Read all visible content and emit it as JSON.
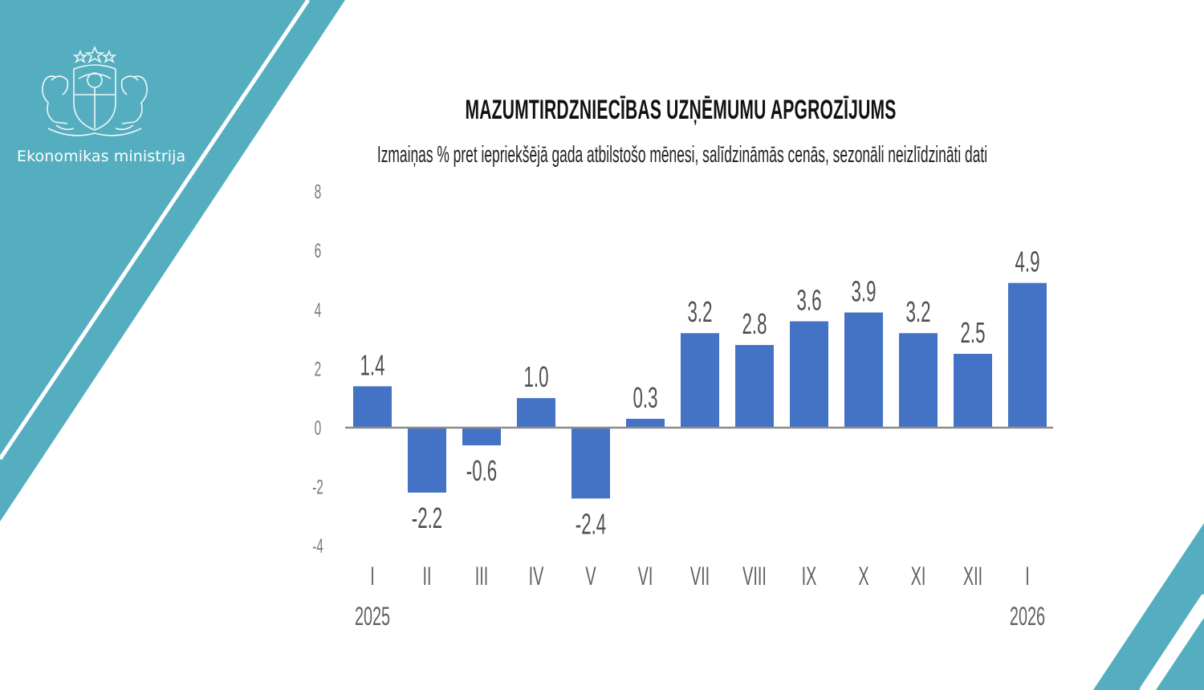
{
  "organization": "Ekonomikas ministrija",
  "colors": {
    "accent": "#55aebf",
    "bar": "#4472c4",
    "axis": "#8c8c8c"
  },
  "chart_data": {
    "type": "bar",
    "title": "MAZUMTIRDZNIECĪBAS UZŅĒMUMU APGROZĪJUMS",
    "subtitle": "Izmaiņas % pret iepriekšējā gada atbilstošo mēnesi, salīdzināmās cenās, sezonāli neizlīdzināti dati",
    "categories": [
      "I",
      "II",
      "III",
      "IV",
      "V",
      "VI",
      "VII",
      "VIII",
      "IX",
      "X",
      "XI",
      "XII",
      "I"
    ],
    "year_labels": [
      {
        "index": 0,
        "label": "2025"
      },
      {
        "index": 12,
        "label": "2026"
      }
    ],
    "values": [
      1.4,
      -2.2,
      -0.6,
      1.0,
      -2.4,
      0.3,
      3.2,
      2.8,
      3.6,
      3.9,
      3.2,
      2.5,
      4.9
    ],
    "data_labels": [
      "1.4",
      "-2.2",
      "-0.6",
      "1.0",
      "-2.4",
      "0.3",
      "3.2",
      "2.8",
      "3.6",
      "3.9",
      "3.2",
      "2.5",
      "4.9"
    ],
    "ylim": [
      -4,
      8
    ],
    "yticks": [
      "-4",
      "-2",
      "0",
      "2",
      "4",
      "6",
      "8"
    ],
    "grid": false,
    "legend": "none"
  }
}
